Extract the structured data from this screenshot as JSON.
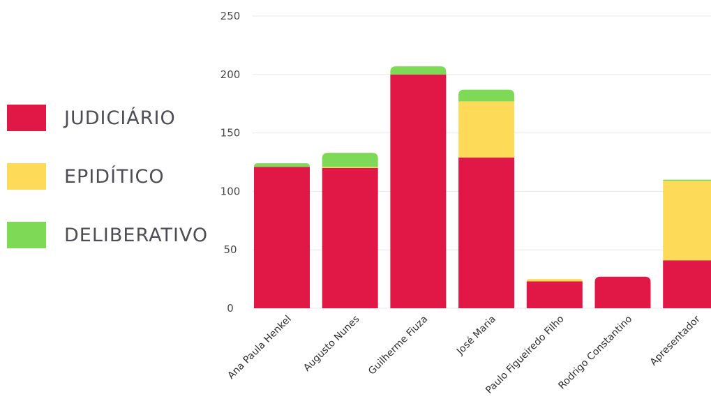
{
  "chart_data": {
    "type": "bar",
    "stacked": true,
    "categories": [
      "Ana Paula Henkel",
      "Augusto Nunes",
      "Guilherme Fiuza",
      "José Maria",
      "Paulo Figueiredo Filho",
      "Rodrigo Constantino",
      "Apresentador"
    ],
    "series": [
      {
        "name": "JUDICIÁRIO",
        "color": "#e11746",
        "values": [
          121,
          120,
          200,
          129,
          23,
          27,
          41
        ]
      },
      {
        "name": "EPIDÍTICO",
        "color": "#fddb59",
        "values": [
          0,
          1,
          0,
          48,
          2,
          0,
          68
        ]
      },
      {
        "name": "DELIBERATIVO",
        "color": "#7ed957",
        "values": [
          3,
          12,
          7,
          10,
          0,
          0,
          1
        ]
      }
    ],
    "yticks": [
      0,
      50,
      100,
      150,
      200,
      250
    ],
    "ylim": [
      0,
      250
    ],
    "grid": true,
    "legend_position": "left"
  }
}
